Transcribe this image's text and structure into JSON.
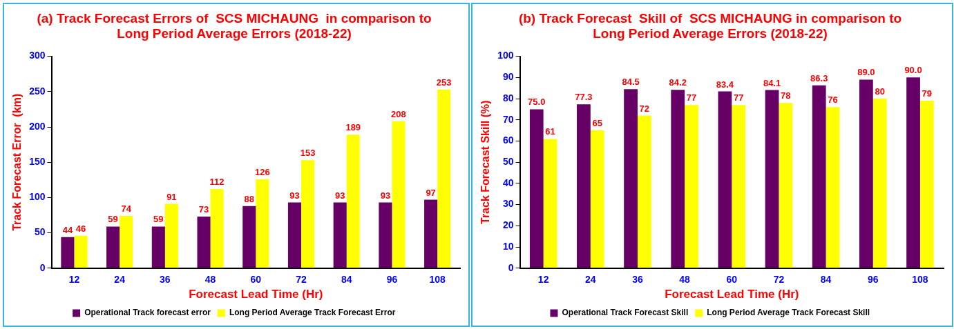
{
  "chart_data": [
    {
      "type": "bar",
      "title": "(a) Track Forecast Errors of  SCS MICHAUNG  in comparison to\nLong Period Average Errors (2018-22)",
      "xlabel": "Forecast Lead Time (Hr)",
      "ylabel": "Track Forecast Error  (km)",
      "categories": [
        "12",
        "24",
        "36",
        "48",
        "60",
        "72",
        "84",
        "96",
        "108"
      ],
      "series": [
        {
          "name": "Operational Track forecast error",
          "color": "#660066",
          "values": [
            44,
            59,
            59,
            73,
            88,
            93,
            93,
            93,
            97
          ]
        },
        {
          "name": "Long Period Average Track Forecast Error",
          "color": "#ffff00",
          "values": [
            46,
            74,
            91,
            112,
            126,
            153,
            189,
            208,
            253
          ]
        }
      ],
      "ylim": [
        0,
        300
      ],
      "yticks": [
        0,
        50,
        100,
        150,
        200,
        250,
        300
      ],
      "grid": false,
      "legend": "bottom",
      "data_labels": true
    },
    {
      "type": "bar",
      "title": "(b) Track Forecast  Skill of  SCS MICHAUNG in comparison to\nLong Period Average Errors (2018-22)",
      "xlabel": "Forecast Lead Time (Hr)",
      "ylabel": "Track Forecast Skill (%)",
      "categories": [
        "12",
        "24",
        "36",
        "48",
        "60",
        "72",
        "84",
        "96",
        "108"
      ],
      "series": [
        {
          "name": "Operational Track Forecast Skill",
          "color": "#660066",
          "values": [
            75.0,
            77.3,
            84.5,
            84.2,
            83.4,
            84.1,
            86.3,
            89.0,
            90.0
          ],
          "value_labels": [
            "75.0",
            "77.3",
            "84.5",
            "84.2",
            "83.4",
            "84.1",
            "86.3",
            "89.0",
            "90.0"
          ]
        },
        {
          "name": "Long Period Average Track Forecast Skill",
          "color": "#ffff00",
          "values": [
            61,
            65,
            72,
            77,
            77,
            78,
            76,
            80,
            79
          ],
          "value_labels": [
            "61",
            "65",
            "72",
            "77",
            "77",
            "78",
            "76",
            "80",
            "79"
          ]
        }
      ],
      "ylim": [
        0,
        100
      ],
      "yticks": [
        0,
        10,
        20,
        30,
        40,
        50,
        60,
        70,
        80,
        90,
        100
      ],
      "grid": false,
      "legend": "bottom"
    }
  ]
}
